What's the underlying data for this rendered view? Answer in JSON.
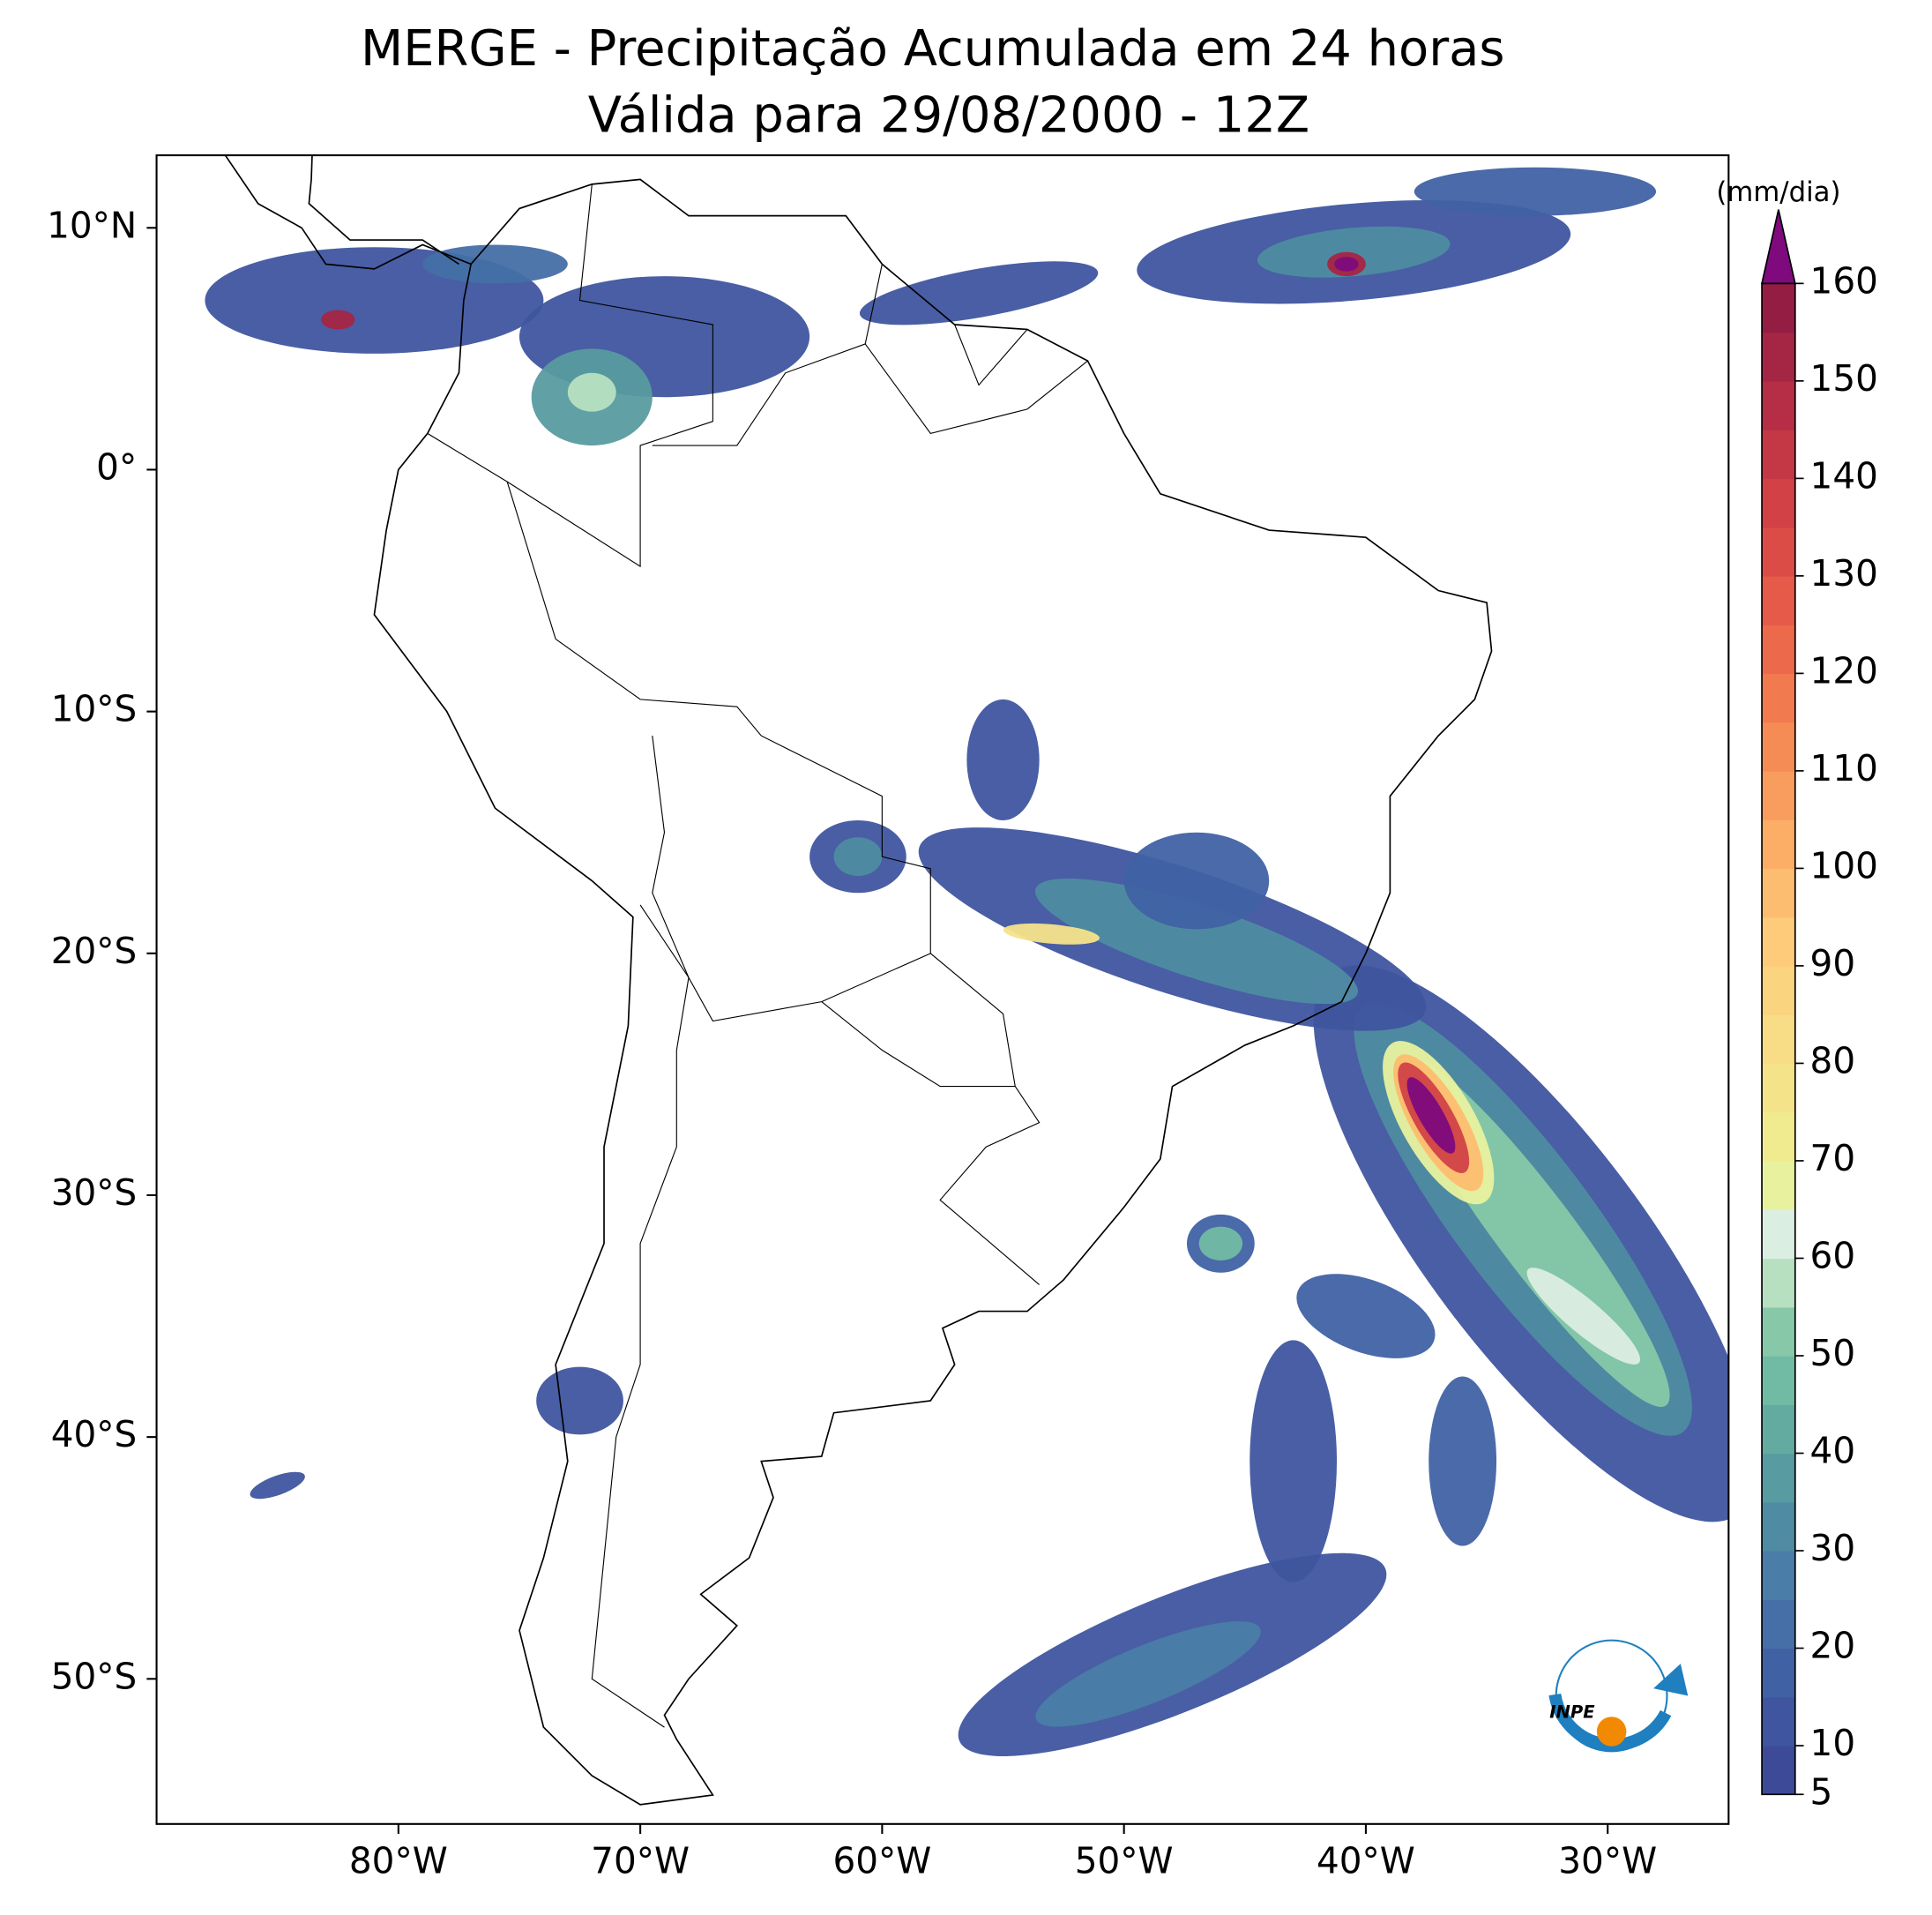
{
  "chart_data": {
    "type": "map",
    "title": "MERGE - Precipitação Acumulada em 24 horas",
    "subtitle": "Válida para 29/08/2000 - 12Z",
    "xlim": [
      -90,
      -25
    ],
    "ylim": [
      -56,
      13
    ],
    "xticks": [
      {
        "value": -80,
        "label": "80°W"
      },
      {
        "value": -70,
        "label": "70°W"
      },
      {
        "value": -60,
        "label": "60°W"
      },
      {
        "value": -50,
        "label": "50°W"
      },
      {
        "value": -40,
        "label": "40°W"
      },
      {
        "value": -30,
        "label": "30°W"
      }
    ],
    "yticks": [
      {
        "value": 10,
        "label": "10°N"
      },
      {
        "value": 0,
        "label": "0°"
      },
      {
        "value": -10,
        "label": "10°S"
      },
      {
        "value": -20,
        "label": "20°S"
      },
      {
        "value": -30,
        "label": "30°S"
      },
      {
        "value": -40,
        "label": "40°S"
      },
      {
        "value": -50,
        "label": "50°S"
      }
    ],
    "colorbar": {
      "label": "(mm/dia)",
      "lim": [
        5,
        160
      ],
      "ticks": [
        5,
        10,
        20,
        30,
        40,
        50,
        60,
        70,
        80,
        90,
        100,
        110,
        120,
        130,
        140,
        150,
        160
      ],
      "step": 5,
      "colors": [
        "#3d4a98",
        "#3f559f",
        "#4062a4",
        "#456fa6",
        "#4a7da7",
        "#4f8ba2",
        "#589ba0",
        "#63aba0",
        "#71bba4",
        "#86c8a8",
        "#b7e0c0",
        "#dbeee2",
        "#e8f29e",
        "#f1eb8f",
        "#f5e38a",
        "#f8dc86",
        "#fbd47f",
        "#fdcb79",
        "#fdbd70",
        "#fcae67",
        "#f99d5e",
        "#f68c55",
        "#f27a4f",
        "#ec6a4b",
        "#e55a48",
        "#dc4c47",
        "#d14146",
        "#c43846",
        "#b52e46",
        "#a52545",
        "#941d44"
      ],
      "extend_color": "#7e0a7e"
    },
    "logo_text": "INPE"
  }
}
